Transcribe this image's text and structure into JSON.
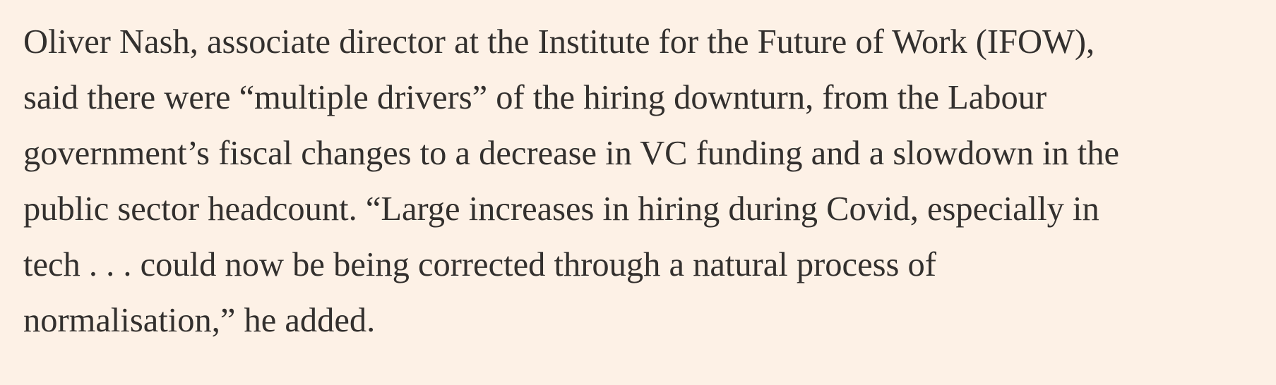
{
  "article": {
    "paragraph_lines": [
      "Oliver Nash, associate director at the Institute for the Future of Work (IFOW),",
      "said there were “multiple drivers” of the hiring downturn, from the Labour",
      "government’s fiscal changes to a decrease in VC funding and a slowdown in the",
      "public sector headcount. “Large increases in hiring during Covid, especially in",
      "tech . . . could now be being corrected through a natural process of",
      "normalisation,” he added."
    ]
  },
  "colors": {
    "background": "#fdf1e6",
    "text": "#33302e"
  }
}
